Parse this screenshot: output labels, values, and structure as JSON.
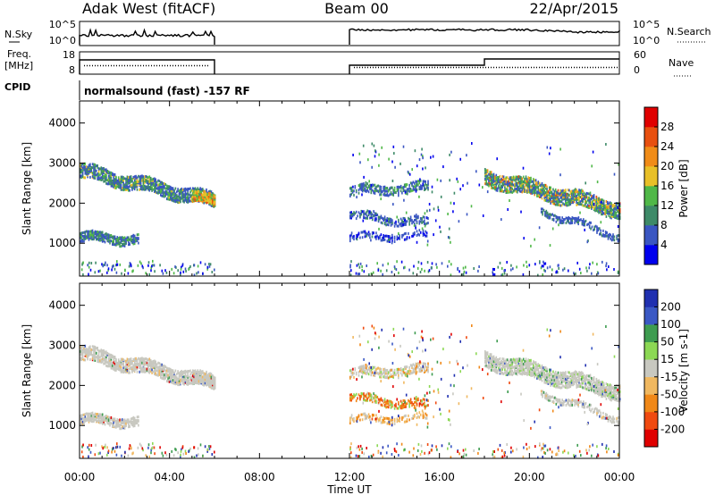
{
  "header": {
    "station": "Adak West (fitACF)",
    "beam": "Beam 00",
    "date": "22/Apr/2015"
  },
  "top_panels": {
    "nsky_label": "N.Sky",
    "nsky_ticks": [
      "10^5",
      "10^0"
    ],
    "nsearch_label": "N.Search",
    "nsearch_ticks": [
      "10^5",
      "10^0"
    ],
    "freq_label_1": "Freq.",
    "freq_label_2": "[MHz]",
    "freq_ticks": [
      "18",
      "8"
    ],
    "nave_label": "Nave",
    "nave_ticks": [
      "60",
      "0"
    ],
    "cpid_label": "CPID",
    "cpid_text": "normalsound (fast) -157 RF"
  },
  "colors": {
    "power": [
      "#0000ee",
      "#3a56c2",
      "#3e8a68",
      "#50b848",
      "#e8c028",
      "#f08c18",
      "#e85010",
      "#e00000"
    ],
    "velocity": [
      "#e00000",
      "#f04a10",
      "#f08818",
      "#f0b860",
      "#c8c8c0",
      "#8cd854",
      "#3e9c50",
      "#3a58c4",
      "#2030b0"
    ]
  },
  "chart_data": [
    {
      "type": "heatmap",
      "quantity": "Power",
      "ylabel": "Slant Range [km]",
      "xlabel": "Time UT",
      "ylim": [
        180,
        4550
      ],
      "xlim": [
        "00:00",
        "24:00"
      ],
      "yticks": [
        "1000",
        "2000",
        "3000",
        "4000"
      ],
      "xticks": [
        "00:00",
        "04:00",
        "08:00",
        "12:00",
        "16:00",
        "20:00",
        "00:00"
      ],
      "colorbar_label": "Power [dB]",
      "colorbar_ticks": [
        "4",
        "8",
        "12",
        "16",
        "20",
        "24",
        "28"
      ],
      "echo_bands": [
        {
          "t_start": 0.0,
          "t_end": 6.0,
          "range_start_km": 2800,
          "range_end_km": 2050,
          "power_db": 12
        },
        {
          "t_start": 0.0,
          "t_end": 2.6,
          "range_start_km": 1100,
          "range_end_km": 1100,
          "power_db": 8
        },
        {
          "t_start": 12.0,
          "t_end": 15.5,
          "range_start_km": 2300,
          "range_end_km": 2400,
          "power_db": 8
        },
        {
          "t_start": 12.0,
          "t_end": 15.5,
          "range_start_km": 1650,
          "range_end_km": 1450,
          "power_db": 8
        },
        {
          "t_start": 18.0,
          "t_end": 24.0,
          "range_start_km": 2700,
          "range_end_km": 1850,
          "power_db": 16
        },
        {
          "t_start": 20.5,
          "t_end": 24.0,
          "range_start_km": 1800,
          "range_end_km": 1150,
          "power_db": 6
        }
      ]
    },
    {
      "type": "heatmap",
      "quantity": "Velocity",
      "ylabel": "Slant Range [km]",
      "xlabel": "Time UT",
      "ylim": [
        180,
        4550
      ],
      "xlim": [
        "00:00",
        "24:00"
      ],
      "yticks": [
        "1000",
        "2000",
        "3000",
        "4000"
      ],
      "xticks": [
        "00:00",
        "04:00",
        "08:00",
        "12:00",
        "16:00",
        "20:00",
        "00:00"
      ],
      "colorbar_label": "Velocity [m s-1]",
      "colorbar_ticks": [
        "200",
        "100",
        "50",
        "15",
        "-15",
        "-50",
        "-100",
        "-200"
      ]
    }
  ]
}
